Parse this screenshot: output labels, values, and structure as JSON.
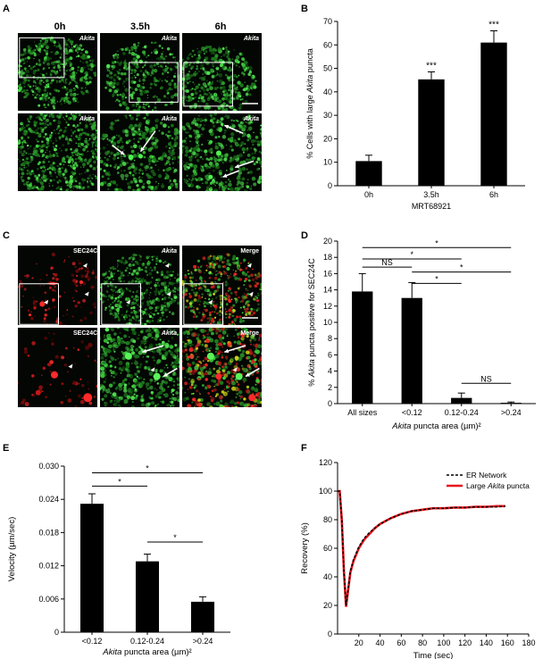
{
  "panels": {
    "A": {
      "letter": "A",
      "timepoints": [
        "0h",
        "3.5h",
        "6h"
      ],
      "image_label": "Akita"
    },
    "B": {
      "letter": "B"
    },
    "C": {
      "letter": "C",
      "channels": [
        "SEC24C",
        "Akita",
        "Merge"
      ]
    },
    "D": {
      "letter": "D"
    },
    "E": {
      "letter": "E"
    },
    "F": {
      "letter": "F"
    }
  },
  "chart_data": [
    {
      "id": "B",
      "type": "bar",
      "categories": [
        "0h",
        "3.5h",
        "6h"
      ],
      "values": [
        10.5,
        45.3,
        61.0
      ],
      "errors": [
        2.5,
        3.2,
        5.0
      ],
      "significance": [
        "",
        "***",
        "***"
      ],
      "xlabel": "MRT68921",
      "ylabel_parts": [
        "% Cells with large ",
        "Akita",
        " puncta"
      ],
      "ylim": [
        0,
        70
      ],
      "yticks": [
        0,
        10,
        20,
        30,
        40,
        50,
        60,
        70
      ],
      "bar_color": "#000000"
    },
    {
      "id": "D",
      "type": "bar",
      "categories": [
        "All sizes",
        "<0.12",
        "0.12-0.24",
        ">0.24"
      ],
      "values": [
        13.8,
        13.0,
        0.7,
        0.1
      ],
      "errors": [
        2.2,
        1.9,
        0.6,
        0.1
      ],
      "xlabel_parts": [
        "Akita",
        " puncta area (µm)²"
      ],
      "ylabel_parts": [
        "% ",
        "Akita",
        " puncta positive for SEC24C"
      ],
      "ylim": [
        0,
        20
      ],
      "yticks": [
        0,
        2,
        4,
        6,
        8,
        10,
        12,
        14,
        16,
        18,
        20
      ],
      "comparisons": [
        {
          "from": 0,
          "to": 1,
          "y": 16.8,
          "label": "NS"
        },
        {
          "from": 0,
          "to": 2,
          "y": 17.8,
          "label": "*"
        },
        {
          "from": 0,
          "to": 3,
          "y": 19.2,
          "label": "*"
        },
        {
          "from": 1,
          "to": 3,
          "y": 16.2,
          "label": "*"
        },
        {
          "from": 1,
          "to": 2,
          "y": 14.8,
          "label": "*"
        },
        {
          "from": 2,
          "to": 3,
          "y": 2.5,
          "label": "NS"
        }
      ],
      "bar_color": "#000000"
    },
    {
      "id": "E",
      "type": "bar",
      "categories": [
        "<0.12",
        "0.12-0.24",
        ">0.24"
      ],
      "values": [
        0.0232,
        0.0128,
        0.0055
      ],
      "errors": [
        0.0018,
        0.0013,
        0.0009
      ],
      "xlabel_parts": [
        "Akita",
        " puncta area (µm)²"
      ],
      "ylabel": "Velocity (µm/sec)",
      "ylim": [
        0,
        0.03
      ],
      "yticks": [
        "0",
        "0.006",
        "0.012",
        "0.018",
        "0.024",
        "0.030"
      ],
      "ytick_values": [
        0,
        0.006,
        0.012,
        0.018,
        0.024,
        0.03
      ],
      "comparisons": [
        {
          "from": 0,
          "to": 1,
          "y": 0.0264,
          "label": "*"
        },
        {
          "from": 0,
          "to": 2,
          "y": 0.0288,
          "label": "*"
        },
        {
          "from": 1,
          "to": 2,
          "y": 0.0163,
          "label": "*"
        }
      ],
      "bar_color": "#000000"
    },
    {
      "id": "F",
      "type": "line",
      "xlabel": "Time (sec)",
      "ylabel": "Recovery (%)",
      "xlim": [
        0,
        180
      ],
      "ylim": [
        0,
        120
      ],
      "xticks": [
        20,
        40,
        60,
        80,
        100,
        120,
        140,
        160,
        180
      ],
      "yticks": [
        0,
        20,
        40,
        60,
        80,
        100,
        120
      ],
      "legend_position": "top-right",
      "series": [
        {
          "name_parts": [
            "ER Network"
          ],
          "color": "#000000",
          "dashed": true,
          "x": [
            0,
            2,
            4,
            6,
            8,
            10,
            12,
            15,
            20,
            25,
            30,
            35,
            40,
            50,
            60,
            70,
            80,
            90,
            100,
            110,
            120,
            130,
            140,
            150,
            158
          ],
          "y": [
            100,
            100,
            80,
            45,
            20,
            32,
            44,
            52,
            61,
            67,
            71,
            74,
            77,
            81,
            84,
            86,
            87,
            88,
            88,
            88.5,
            88.5,
            89,
            89,
            89,
            89.5
          ]
        },
        {
          "name_parts": [
            "Large ",
            "Akita",
            " puncta"
          ],
          "color": "#e8141b",
          "dashed": false,
          "x": [
            0,
            2,
            4,
            6,
            8,
            10,
            12,
            15,
            20,
            25,
            30,
            35,
            40,
            50,
            60,
            70,
            80,
            90,
            100,
            110,
            120,
            130,
            140,
            150,
            158
          ],
          "y": [
            100,
            100,
            79,
            44,
            19,
            31,
            43,
            51,
            60,
            66,
            70,
            74,
            77,
            81,
            84,
            86,
            87,
            88,
            88,
            88.5,
            88.5,
            89,
            89,
            89.5,
            89.5
          ]
        }
      ]
    }
  ]
}
